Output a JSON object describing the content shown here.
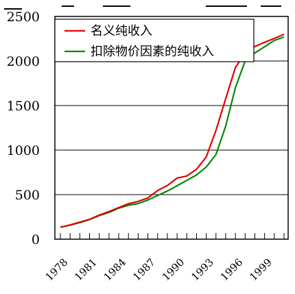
{
  "chart_data": {
    "type": "line",
    "title": "",
    "xlabel": "",
    "ylabel": "",
    "ylim": [
      0,
      2500
    ],
    "yticks": [
      0,
      500,
      1000,
      1500,
      2000,
      2500
    ],
    "xtick_labels": [
      "1978",
      "1981",
      "1984",
      "1987",
      "1990",
      "1993",
      "1996",
      "1999"
    ],
    "grid": "horizontal",
    "legend_position": "top-left",
    "x": [
      1978,
      1979,
      1980,
      1981,
      1982,
      1983,
      1984,
      1985,
      1986,
      1987,
      1988,
      1989,
      1990,
      1991,
      1992,
      1993,
      1994,
      1995,
      1996,
      1997,
      1998,
      1999,
      2000,
      2001
    ],
    "series": [
      {
        "name": "名义纯收入",
        "color": "#e00000",
        "values": [
          134,
          160,
          191,
          223,
          270,
          310,
          355,
          398,
          424,
          463,
          545,
          602,
          686,
          709,
          784,
          922,
          1221,
          1578,
          1926,
          2090,
          2162,
          2210,
          2253,
          2300
        ]
      },
      {
        "name": "扣除物价因素的纯收入",
        "color": "#008a00",
        "values": [
          134,
          157,
          186,
          220,
          265,
          300,
          348,
          380,
          400,
          440,
          490,
          540,
          600,
          660,
          720,
          810,
          950,
          1270,
          1700,
          2000,
          2090,
          2160,
          2230,
          2270
        ]
      }
    ]
  }
}
